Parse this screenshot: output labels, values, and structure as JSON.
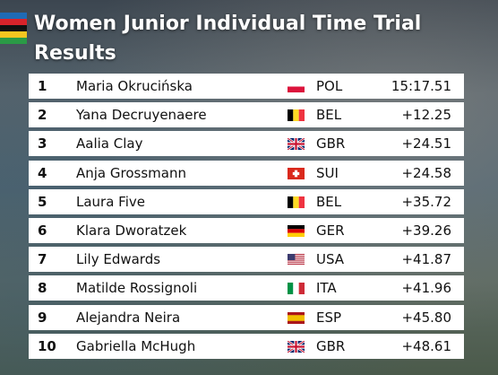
{
  "header": {
    "title": "Women Junior Individual Time Trial",
    "subtitle": "Results"
  },
  "table": {
    "rows": [
      [
        1,
        "Maria Okrucińska",
        "POL",
        "15:17.51"
      ],
      [
        2,
        "Yana Decruyenaere",
        "BEL",
        "+12.25"
      ],
      [
        3,
        "Aalia Clay",
        "GBR",
        "+24.51"
      ],
      [
        4,
        "Anja Grossmann",
        "SUI",
        "+24.58"
      ],
      [
        5,
        "Laura Five",
        "BEL",
        "+35.72"
      ],
      [
        6,
        "Klara Dworatzek",
        "GER",
        "+39.26"
      ],
      [
        7,
        "Lily Edwards",
        "USA",
        "+41.87"
      ],
      [
        8,
        "Matilde Rossignoli",
        "ITA",
        "+41.96"
      ],
      [
        9,
        "Alejandra Neira",
        "ESP",
        "+45.80"
      ],
      [
        10,
        "Gabriella McHugh",
        "GBR",
        "+48.61"
      ]
    ]
  }
}
